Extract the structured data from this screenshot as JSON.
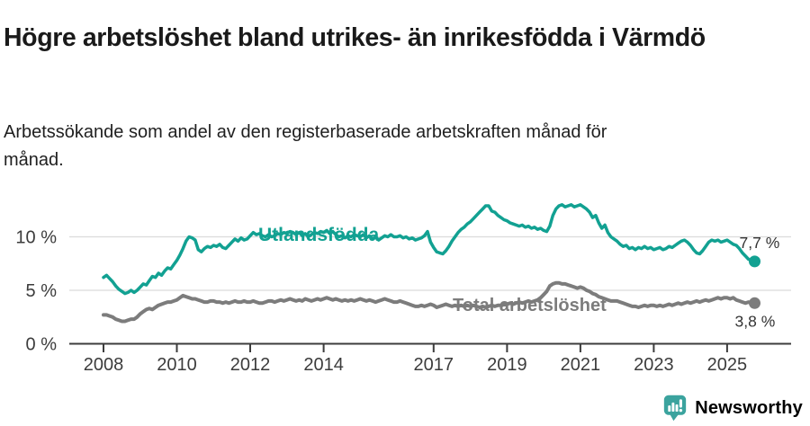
{
  "header": {
    "title": "Högre arbetslöshet bland utrikes- än inrikesfödda i Värmdö",
    "subtitle": "Arbetssökande som andel av den registerbaserade arbetskraften månad för månad."
  },
  "footer": {
    "brand": "Newsworthy"
  },
  "colors": {
    "series1": "#12a192",
    "series2": "#7c7c7c",
    "axis": "#3c3c3c",
    "grid": "#dbdbdb",
    "value_label": "#333333",
    "brand": "#3ba39e",
    "title_text": "#1a1a1a"
  },
  "chart_data": {
    "type": "line",
    "title": "Högre arbetslöshet bland utrikes- än inrikesfödda i Värmdö",
    "subtitle": "Arbetssökande som andel av den registerbaserade arbetskraften månad för månad.",
    "freq": "monthly",
    "x_start": "2008-01",
    "x_end": "2025-10",
    "grid": "horizontal",
    "legend_position": "inline-labels",
    "y_ticks": [
      0,
      5,
      10
    ],
    "y_tick_labels": [
      "0 %",
      "5 %",
      "10 %"
    ],
    "ylim": [
      0,
      13.6
    ],
    "x_tick_years": [
      2008,
      2010,
      2012,
      2014,
      2017,
      2019,
      2021,
      2023,
      2025
    ],
    "x_tick_labels": [
      "2008",
      "2010",
      "2012",
      "2014",
      "2017",
      "2019",
      "2021",
      "2023",
      "2025"
    ],
    "series": [
      {
        "name": "Utlandsfödda",
        "color": "#12a192",
        "end_label": "7,7 %",
        "end_value": 7.7,
        "values": [
          6.2,
          6.4,
          6.1,
          5.8,
          5.4,
          5.1,
          4.9,
          4.7,
          4.8,
          5.0,
          4.8,
          5.0,
          5.3,
          5.6,
          5.5,
          5.9,
          6.3,
          6.2,
          6.6,
          6.4,
          6.8,
          7.1,
          7.0,
          7.4,
          7.8,
          8.3,
          8.9,
          9.6,
          10.0,
          9.9,
          9.7,
          8.8,
          8.6,
          8.9,
          9.1,
          9.0,
          9.2,
          9.1,
          9.3,
          9.0,
          8.9,
          9.2,
          9.5,
          9.8,
          9.6,
          9.9,
          9.7,
          9.8,
          10.1,
          10.4,
          10.2,
          10.3,
          10.1,
          10.0,
          10.2,
          10.0,
          10.1,
          10.3,
          10.2,
          10.4,
          10.3,
          10.5,
          10.4,
          10.2,
          10.4,
          10.1,
          10.3,
          10.0,
          10.2,
          10.4,
          10.3,
          10.5,
          10.4,
          10.6,
          10.3,
          10.5,
          10.2,
          10.0,
          10.1,
          9.9,
          10.1,
          10.0,
          10.2,
          10.1,
          10.0,
          10.2,
          9.9,
          10.1,
          9.8,
          10.0,
          9.7,
          9.9,
          10.1,
          10.0,
          10.2,
          10.0,
          10.0,
          10.1,
          9.9,
          10.0,
          9.8,
          9.9,
          9.7,
          9.8,
          9.9,
          10.1,
          10.5,
          9.5,
          9.0,
          8.6,
          8.5,
          8.4,
          8.7,
          9.1,
          9.6,
          10.0,
          10.4,
          10.7,
          10.9,
          11.2,
          11.4,
          11.7,
          12.0,
          12.3,
          12.6,
          12.9,
          12.9,
          12.4,
          12.3,
          12.0,
          11.8,
          11.6,
          11.5,
          11.3,
          11.2,
          11.1,
          11.0,
          11.1,
          10.9,
          11.0,
          10.8,
          10.9,
          10.7,
          10.8,
          10.6,
          10.5,
          11.0,
          12.0,
          12.6,
          12.9,
          13.0,
          12.8,
          12.9,
          13.0,
          12.8,
          12.9,
          13.0,
          12.8,
          12.6,
          12.3,
          11.8,
          12.0,
          11.3,
          10.8,
          11.1,
          10.4,
          10.0,
          9.8,
          9.6,
          9.3,
          9.1,
          9.2,
          8.9,
          9.0,
          8.8,
          9.0,
          8.9,
          9.1,
          8.9,
          9.0,
          8.8,
          8.9,
          9.0,
          8.8,
          8.9,
          9.1,
          9.0,
          9.2,
          9.4,
          9.6,
          9.7,
          9.5,
          9.2,
          8.8,
          8.5,
          8.4,
          8.7,
          9.1,
          9.5,
          9.7,
          9.6,
          9.7,
          9.5,
          9.6,
          9.7,
          9.5,
          9.3,
          9.2,
          8.9,
          8.5,
          8.2,
          7.9,
          7.8,
          7.7
        ]
      },
      {
        "name": "Total arbetslöshet",
        "color": "#7c7c7c",
        "end_label": "3,8 %",
        "end_value": 3.8,
        "values": [
          2.7,
          2.7,
          2.6,
          2.5,
          2.3,
          2.2,
          2.1,
          2.1,
          2.2,
          2.3,
          2.3,
          2.5,
          2.8,
          3.0,
          3.2,
          3.3,
          3.2,
          3.4,
          3.6,
          3.7,
          3.8,
          3.9,
          3.9,
          4.0,
          4.1,
          4.3,
          4.5,
          4.4,
          4.3,
          4.2,
          4.2,
          4.1,
          4.0,
          3.9,
          3.9,
          4.0,
          4.0,
          3.9,
          3.9,
          3.8,
          3.9,
          3.8,
          3.9,
          4.0,
          3.9,
          3.9,
          4.0,
          3.9,
          3.9,
          4.0,
          3.9,
          3.8,
          3.8,
          3.9,
          4.0,
          4.0,
          3.9,
          4.0,
          4.1,
          4.0,
          4.1,
          4.2,
          4.1,
          4.0,
          4.1,
          4.0,
          4.2,
          4.1,
          4.0,
          4.1,
          4.2,
          4.1,
          4.2,
          4.3,
          4.2,
          4.1,
          4.2,
          4.1,
          4.0,
          4.1,
          4.0,
          4.1,
          4.0,
          4.1,
          4.2,
          4.1,
          4.0,
          4.1,
          4.0,
          3.9,
          4.0,
          4.1,
          4.2,
          4.1,
          4.0,
          3.9,
          3.9,
          4.0,
          3.9,
          3.8,
          3.7,
          3.6,
          3.5,
          3.5,
          3.6,
          3.5,
          3.6,
          3.7,
          3.6,
          3.4,
          3.5,
          3.6,
          3.7,
          3.6,
          3.5,
          3.6,
          3.5,
          3.6,
          3.5,
          3.6,
          3.5,
          3.6,
          3.5,
          3.4,
          3.5,
          3.4,
          3.5,
          3.6,
          3.5,
          3.6,
          3.6,
          3.7,
          3.7,
          3.8,
          3.7,
          3.8,
          3.9,
          3.8,
          3.9,
          4.0,
          3.9,
          4.0,
          4.1,
          4.3,
          4.6,
          4.9,
          5.4,
          5.6,
          5.7,
          5.7,
          5.6,
          5.6,
          5.5,
          5.4,
          5.3,
          5.2,
          5.3,
          5.2,
          5.0,
          4.9,
          4.7,
          4.6,
          4.4,
          4.3,
          4.2,
          4.1,
          4.0,
          4.0,
          4.0,
          3.9,
          3.8,
          3.7,
          3.6,
          3.5,
          3.5,
          3.4,
          3.5,
          3.6,
          3.5,
          3.6,
          3.6,
          3.5,
          3.6,
          3.5,
          3.6,
          3.7,
          3.6,
          3.7,
          3.8,
          3.7,
          3.8,
          3.9,
          3.8,
          3.9,
          4.0,
          3.9,
          4.0,
          4.1,
          4.0,
          4.1,
          4.2,
          4.3,
          4.2,
          4.3,
          4.3,
          4.2,
          4.3,
          4.1,
          4.0,
          3.9,
          3.8,
          3.9,
          3.8,
          3.8
        ]
      }
    ]
  }
}
